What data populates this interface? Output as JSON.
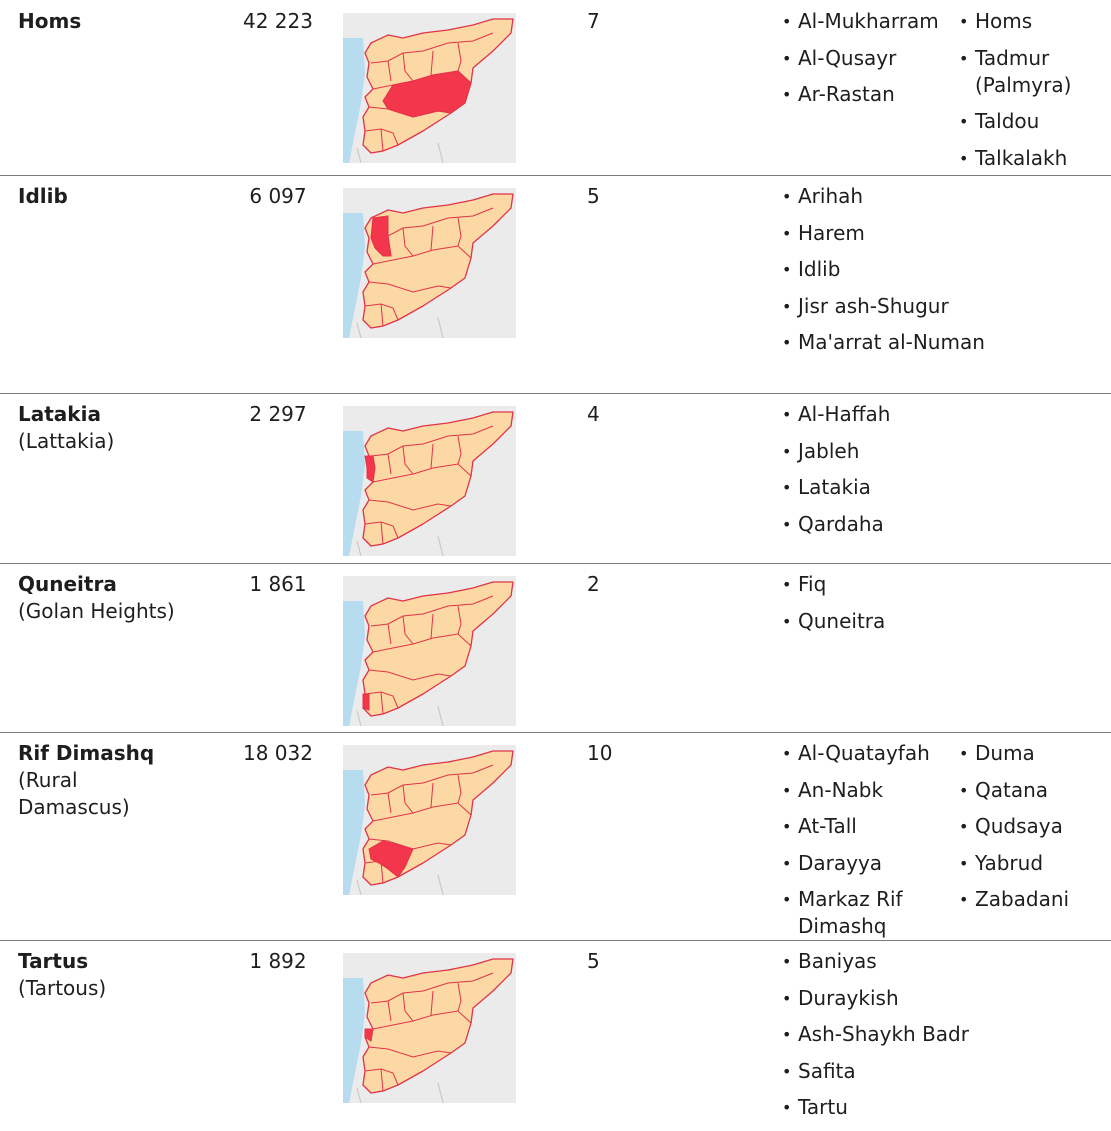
{
  "colors": {
    "highlight": "#f4364c",
    "province": "#fcd9a4",
    "border": "#e03348",
    "sea": "#b8dcef",
    "background": "#ebebeb"
  },
  "rows": [
    {
      "name": "Homs",
      "alt": "",
      "area": "42 223",
      "districts_count": "7",
      "highlight": "homs",
      "districts_col1": [
        "Al-Mukharram",
        "Al-Qusayr",
        "Ar-Rastan"
      ],
      "districts_col2": [
        "Homs",
        "Tadmur (Palmyra)",
        "Taldou",
        "Talkalakh"
      ]
    },
    {
      "name": "Idlib",
      "alt": "",
      "area": "6 097",
      "districts_count": "5",
      "highlight": "idlib",
      "districts_col1": [
        "Arihah",
        "Harem",
        "Idlib",
        "Jisr ash-Shugur",
        "Ma'arrat al-Numan"
      ],
      "districts_col2": []
    },
    {
      "name": "Latakia",
      "alt": "(Lattakia)",
      "area": "2 297",
      "districts_count": "4",
      "highlight": "latakia",
      "districts_col1": [
        "Al-Haffah",
        "Jableh",
        "Latakia",
        "Qardaha"
      ],
      "districts_col2": []
    },
    {
      "name": "Quneitra",
      "alt": "(Golan Heights)",
      "area": "1 861",
      "districts_count": "2",
      "highlight": "quneitra",
      "districts_col1": [
        "Fiq",
        "Quneitra"
      ],
      "districts_col2": []
    },
    {
      "name": "Rif Dimashq",
      "alt": "(Rural Damascus)",
      "area": "18 032",
      "districts_count": "10",
      "highlight": "rif",
      "districts_col1": [
        "Al-Quatayfah",
        "An-Nabk",
        "At-Tall",
        "Darayya",
        "Markaz Rif Dimashq"
      ],
      "districts_col2": [
        "Duma",
        "Qatana",
        "Qudsaya",
        "Yabrud",
        "Zabadani"
      ]
    },
    {
      "name": "Tartus",
      "alt": "(Tartous)",
      "area": "1 892",
      "districts_count": "5",
      "highlight": "tartus",
      "districts_col1": [
        "Baniyas",
        "Duraykish",
        "Ash-Shaykh Badr",
        "Safita",
        "Tartu"
      ],
      "districts_col2": []
    }
  ]
}
